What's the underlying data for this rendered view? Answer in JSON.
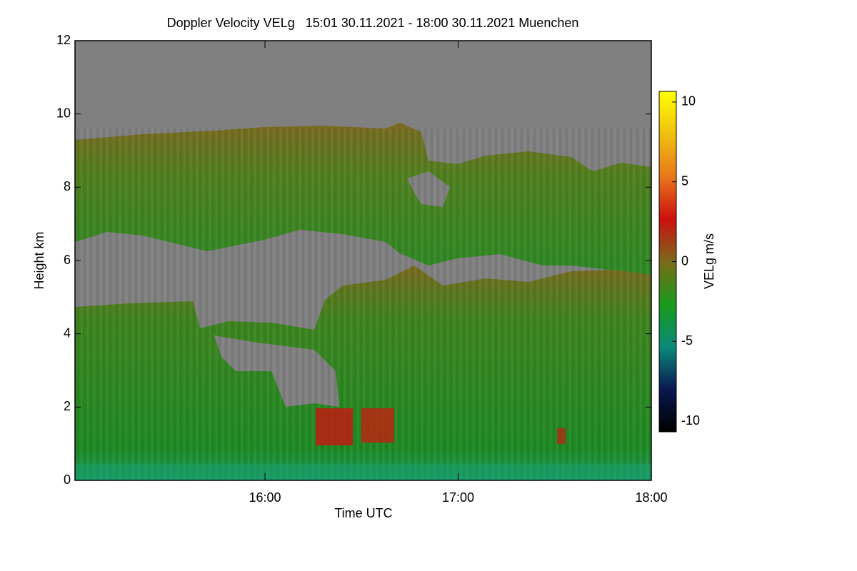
{
  "chart_data": {
    "type": "heatmap",
    "title": "Doppler Velocity VELg   15:01 30.11.2021 - 18:00 30.11.2021 Muenchen",
    "x_label": "Time UTC",
    "y_label": "Height km",
    "colorbar_label": "VELg m/s",
    "xlim": [
      15.0167,
      18.0
    ],
    "xticks": [
      {
        "value": 16,
        "label": "16:00"
      },
      {
        "value": 17,
        "label": "17:00"
      },
      {
        "value": 18,
        "label": "18:00"
      }
    ],
    "ylim": [
      0,
      12
    ],
    "yticks": [
      0,
      2,
      4,
      6,
      8,
      10,
      12
    ],
    "clim": [
      -10.67,
      10.67
    ],
    "cticks": [
      -10,
      -5,
      0,
      5,
      10
    ],
    "colormap": [
      "#000000",
      "#0a1850",
      "#0a8a7a",
      "#1a9a1a",
      "#7a6a1a",
      "#cc1010",
      "#e8781a",
      "#f0c010",
      "#ffff00"
    ]
  }
}
